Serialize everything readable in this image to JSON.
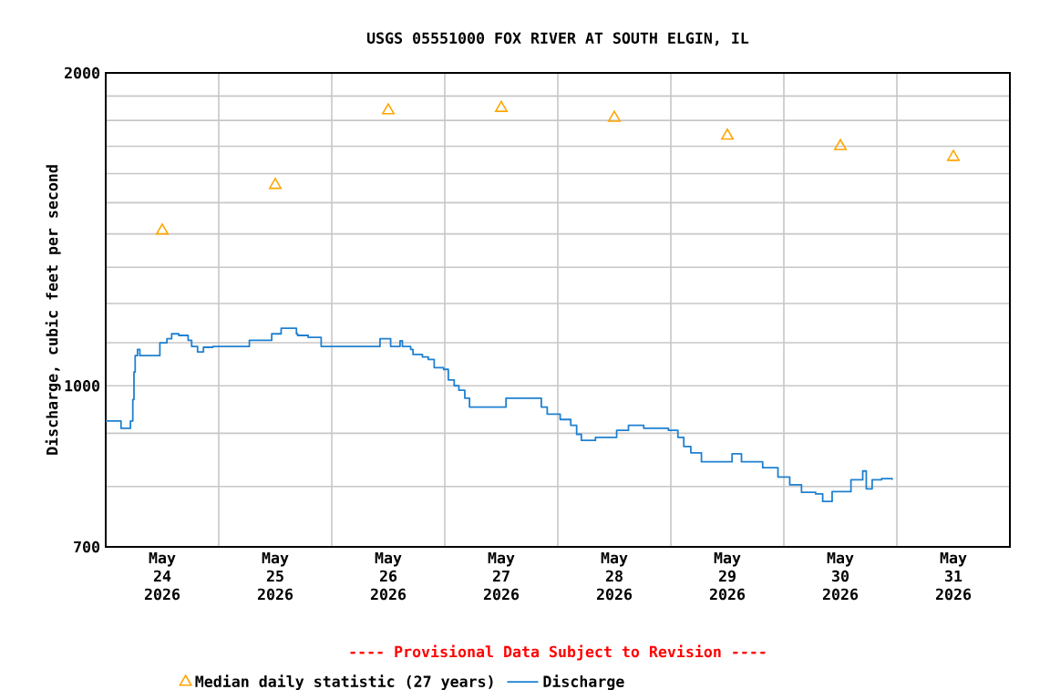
{
  "chart_data": {
    "type": "step",
    "title": "USGS 05551000 FOX RIVER AT SOUTH ELGIN, IL",
    "ylabel": "Discharge, cubic feet per second",
    "annotations": [
      "---- Provisional Data Subject to Revision ----"
    ],
    "log": "y",
    "grid": true,
    "legend": "bottom",
    "xlim": [
      "2026-05-24T00:00",
      "2026-06-01T00:00"
    ],
    "xticks": [
      {
        "value": "2026-05-24T12:00",
        "label": "May 24 2026"
      },
      {
        "value": "2026-05-25T00:00",
        "label": null
      },
      {
        "value": "2026-05-25T12:00",
        "label": "May 25 2026"
      },
      {
        "value": "2026-05-26T00:00",
        "label": null
      },
      {
        "value": "2026-05-26T12:00",
        "label": "May 26 2026"
      },
      {
        "value": "2026-05-27T00:00",
        "label": null
      },
      {
        "value": "2026-05-27T12:00",
        "label": "May 27 2026"
      },
      {
        "value": "2026-05-28T00:00",
        "label": null
      },
      {
        "value": "2026-05-28T12:00",
        "label": "May 28 2026"
      },
      {
        "value": "2026-05-29T00:00",
        "label": null
      },
      {
        "value": "2026-05-29T12:00",
        "label": "May 29 2026"
      },
      {
        "value": "2026-05-30T00:00",
        "label": null
      },
      {
        "value": "2026-05-30T12:00",
        "label": "May 30 2026"
      },
      {
        "value": "2026-05-31T00:00",
        "label": null
      },
      {
        "value": "2026-05-31T12:00",
        "label": "May 31 2026"
      }
    ],
    "ylim": [
      700,
      2000
    ],
    "yticks": [
      700,
      {
        "value": 800,
        "label": null
      },
      {
        "value": 900,
        "label": null
      },
      1000,
      {
        "value": 1100,
        "label": null
      },
      {
        "value": 1200,
        "label": null
      },
      {
        "value": 1300,
        "label": null
      },
      {
        "value": 1400,
        "label": null
      },
      {
        "value": 1500,
        "label": null
      },
      {
        "value": 1600,
        "label": null
      },
      {
        "value": 1700,
        "label": null
      },
      {
        "value": 1800,
        "label": null
      },
      {
        "value": 1900,
        "label": null
      },
      2000
    ],
    "series": [
      {
        "name": "Median daily statistic (27 years)",
        "type": "scatter",
        "marker": "triangle",
        "color": "#ffa500",
        "x": [
          "2026-05-24T12:00",
          "2026-05-25T12:00",
          "2026-05-26T12:00",
          "2026-05-27T12:00",
          "2026-05-28T12:00",
          "2026-05-29T12:00",
          "2026-05-30T12:00",
          "2026-05-31T12:00"
        ],
        "values": [
          1410,
          1560,
          1840,
          1850,
          1810,
          1740,
          1700,
          1660
        ]
      },
      {
        "name": "Discharge",
        "color": "#1f80d0",
        "x": [
          "2026-05-24T00:00",
          "2026-05-24T03:15",
          "2026-05-24T05:15",
          "2026-05-24T05:45",
          "2026-05-24T06:00",
          "2026-05-24T06:15",
          "2026-05-24T06:45",
          "2026-05-24T07:15",
          "2026-05-24T11:30",
          "2026-05-24T13:00",
          "2026-05-24T14:00",
          "2026-05-24T15:30",
          "2026-05-24T17:30",
          "2026-05-24T18:15",
          "2026-05-24T19:30",
          "2026-05-24T20:45",
          "2026-05-24T22:45",
          "2026-05-25T06:30",
          "2026-05-25T11:15",
          "2026-05-25T13:15",
          "2026-05-25T16:30",
          "2026-05-25T16:45",
          "2026-05-25T19:00",
          "2026-05-25T21:45",
          "2026-05-26T10:15",
          "2026-05-26T12:30",
          "2026-05-26T14:30",
          "2026-05-26T15:00",
          "2026-05-26T16:45",
          "2026-05-26T17:15",
          "2026-05-26T19:15",
          "2026-05-26T20:30",
          "2026-05-26T21:45",
          "2026-05-26T23:45",
          "2026-05-27T00:45",
          "2026-05-27T02:00",
          "2026-05-27T03:00",
          "2026-05-27T04:15",
          "2026-05-27T05:15",
          "2026-05-27T13:00",
          "2026-05-27T20:30",
          "2026-05-27T21:45",
          "2026-05-28T00:30",
          "2026-05-28T02:45",
          "2026-05-28T04:00",
          "2026-05-28T05:00",
          "2026-05-28T08:00",
          "2026-05-28T12:30",
          "2026-05-28T15:00",
          "2026-05-28T18:15",
          "2026-05-28T23:30",
          "2026-05-29T01:30",
          "2026-05-29T02:45",
          "2026-05-29T04:15",
          "2026-05-29T06:30",
          "2026-05-29T13:00",
          "2026-05-29T15:00",
          "2026-05-29T19:30",
          "2026-05-29T22:45",
          "2026-05-30T01:15",
          "2026-05-30T03:45",
          "2026-05-30T06:45",
          "2026-05-30T08:15",
          "2026-05-30T10:15",
          "2026-05-30T14:15",
          "2026-05-30T16:45",
          "2026-05-30T17:30",
          "2026-05-30T18:45",
          "2026-05-30T20:45",
          "2026-05-30T23:00"
        ],
        "values": [
          925,
          910,
          925,
          970,
          1031,
          1069,
          1084,
          1069,
          1100,
          1110,
          1122,
          1118,
          1106,
          1091,
          1078,
          1089,
          1091,
          1106,
          1122,
          1136,
          1122,
          1118,
          1113,
          1091,
          1110,
          1091,
          1105,
          1091,
          1084,
          1072,
          1066,
          1060,
          1041,
          1037,
          1013,
          1000,
          990,
          973,
          954,
          973,
          954,
          939,
          928,
          916,
          898,
          886,
          892,
          906,
          916,
          910,
          906,
          892,
          874,
          862,
          845,
          860,
          845,
          834,
          817,
          803,
          790,
          787,
          774,
          791,
          812,
          828,
          796,
          812,
          814,
          812
        ]
      }
    ]
  }
}
